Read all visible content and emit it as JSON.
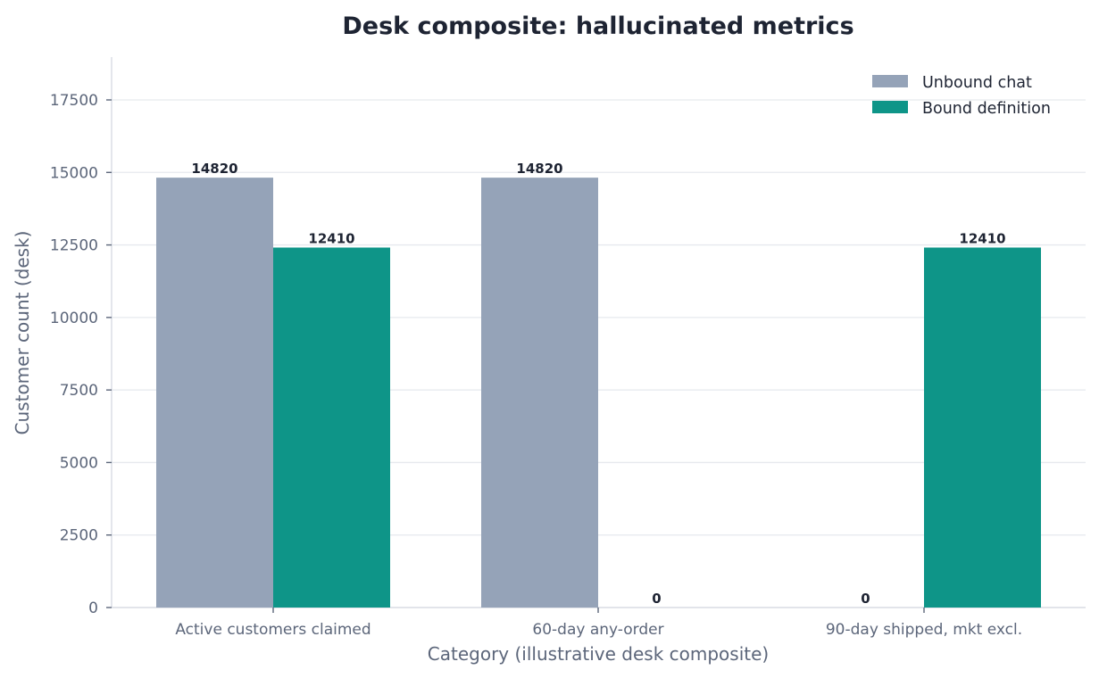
{
  "chart_data": {
    "type": "bar",
    "title": "Desk composite: hallucinated metrics",
    "xlabel": "Category (illustrative desk composite)",
    "ylabel": "Customer count (desk)",
    "categories": [
      "Active customers claimed",
      "60-day any-order",
      "90-day shipped, mkt excl."
    ],
    "series": [
      {
        "name": "Unbound chat",
        "values": [
          14820,
          14820,
          0
        ],
        "value_labels": [
          "14820",
          "14820",
          "0"
        ],
        "color": "#95a3b8"
      },
      {
        "name": "Bound definition",
        "values": [
          12410,
          0,
          12410
        ],
        "value_labels": [
          "12410",
          "0",
          "12410"
        ],
        "color": "#0e9588"
      }
    ],
    "yticks": [
      0,
      2500,
      5000,
      7500,
      10000,
      12500,
      15000,
      17500
    ],
    "ytick_labels": [
      "0",
      "2500",
      "5000",
      "7500",
      "10000",
      "12500",
      "15000",
      "17500"
    ],
    "ylim": [
      0,
      19000
    ],
    "grid": true,
    "legend_position": "top-right"
  }
}
